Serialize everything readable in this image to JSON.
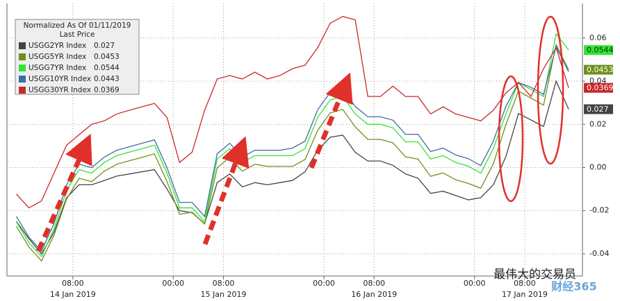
{
  "chart_data": {
    "type": "line",
    "legend_title": "Normalized As Of 01/11/2019",
    "legend_subtitle": "Last Price",
    "x": [
      -1,
      1,
      3,
      5,
      7,
      9,
      11,
      13,
      15,
      17,
      19,
      21,
      23,
      25,
      27,
      29,
      31,
      33,
      35,
      37,
      39,
      41,
      43,
      45,
      47,
      49,
      51,
      53,
      55,
      57,
      59,
      61,
      63,
      65,
      67,
      69,
      71,
      73,
      75,
      77,
      79,
      81,
      83,
      85,
      87
    ],
    "xlim": [
      -2.5,
      89.2
    ],
    "xticks": [
      {
        "value": 8,
        "label": "08:00"
      },
      {
        "value": 24,
        "label": "00:00"
      },
      {
        "value": 32,
        "label": "08:00"
      },
      {
        "value": 48,
        "label": "00:00"
      },
      {
        "value": 56,
        "label": "08:00"
      },
      {
        "value": 72,
        "label": "00:00"
      },
      {
        "value": 80,
        "label": "08:00"
      }
    ],
    "date_labels": [
      {
        "value": 8,
        "label": "14 Jan 2019"
      },
      {
        "value": 32,
        "label": "15 Jan 2019"
      },
      {
        "value": 56,
        "label": "16 Jan 2019"
      },
      {
        "value": 80,
        "label": "17 Jan 2019"
      }
    ],
    "ylim": [
      -0.0503,
      0.076
    ],
    "yticks": [
      0.06,
      0.04,
      0.02,
      {
        "value": 0,
        "label": "0.00"
      },
      -0.02,
      -0.04
    ],
    "grid": true,
    "series": [
      {
        "name": "USGG2YR Index",
        "last": 0.027,
        "color": "#444444",
        "tag_text": "#ffffff",
        "values": [
          -0.025,
          -0.033,
          -0.04,
          -0.03,
          -0.014,
          -0.008,
          -0.008,
          -0.006,
          -0.004,
          -0.003,
          -0.002,
          -0.001,
          -0.01,
          -0.02,
          -0.021,
          -0.026,
          -0.007,
          -0.003,
          -0.009,
          -0.007,
          -0.008,
          -0.007,
          -0.006,
          -0.002,
          0.008,
          0.014,
          0.015,
          0.007,
          0.003,
          0.003,
          0.001,
          -0.003,
          -0.005,
          -0.012,
          -0.011,
          -0.013,
          -0.015,
          -0.014,
          -0.008,
          0.005,
          0.025,
          0.022,
          0.019,
          0.04,
          0.027
        ]
      },
      {
        "name": "USGG5YR Index",
        "last": 0.0453,
        "color": "#6f8f1c",
        "tag_text": "#ffffff",
        "values": [
          -0.0272,
          -0.0368,
          -0.0433,
          -0.0314,
          -0.0146,
          -0.005,
          -0.0066,
          -0.0017,
          0.0015,
          0.0031,
          0.0047,
          0.0063,
          -0.0066,
          -0.0217,
          -0.0207,
          -0.0262,
          -0.0001,
          0.0047,
          -0.0017,
          0.0015,
          0.0005,
          0.0005,
          0.0005,
          0.0037,
          0.0172,
          0.0253,
          0.0269,
          0.0188,
          0.013,
          0.013,
          0.0114,
          0.0049,
          0.0039,
          -0.0041,
          -0.0025,
          -0.0057,
          -0.0074,
          -0.0096,
          0.0017,
          0.0198,
          0.0354,
          0.0321,
          0.0289,
          0.0569,
          0.0453
        ]
      },
      {
        "name": "USGG7YR Index",
        "last": 0.0544,
        "color": "#35e235",
        "tag_text": "#003300",
        "values": [
          -0.0252,
          -0.0348,
          -0.0413,
          -0.0284,
          -0.0106,
          -0.001,
          -0.0026,
          0.0023,
          0.0055,
          0.0071,
          0.0087,
          0.0103,
          -0.0026,
          -0.0187,
          -0.0187,
          -0.0252,
          0.0039,
          0.0087,
          0.0023,
          0.0055,
          0.0055,
          0.0055,
          0.0055,
          0.0087,
          0.0232,
          0.0313,
          0.0329,
          0.0248,
          0.02,
          0.02,
          0.0184,
          0.0119,
          0.0119,
          0.0039,
          0.0055,
          0.0023,
          0.0006,
          -0.0026,
          0.0087,
          0.0248,
          0.0394,
          0.0361,
          0.0329,
          0.0619,
          0.0544
        ]
      },
      {
        "name": "USGG10YR Index",
        "last": 0.0443,
        "color": "#3b6ea5",
        "tag_text": "#ffffff",
        "values": [
          -0.0227,
          -0.0323,
          -0.0388,
          -0.0259,
          -0.0081,
          0.0015,
          -0.0001,
          0.0048,
          0.008,
          0.0096,
          0.0112,
          0.0128,
          -0.0001,
          -0.0162,
          -0.0162,
          -0.0227,
          0.0064,
          0.0112,
          0.0048,
          0.008,
          0.008,
          0.008,
          0.009,
          0.0122,
          0.0267,
          0.0348,
          0.0364,
          0.0283,
          0.0235,
          0.0235,
          0.0219,
          0.0154,
          0.0154,
          0.0074,
          0.009,
          0.0058,
          0.0041,
          0.0009,
          0.0122,
          0.0283,
          0.0394,
          0.0371,
          0.0339,
          0.056,
          0.0443
        ]
      },
      {
        "name": "USGG30YR Index",
        "last": 0.0369,
        "color": "#c8282a",
        "tag_text": "#ffffff",
        "values": [
          -0.0123,
          -0.0187,
          -0.0155,
          -0.0026,
          0.0103,
          0.0152,
          0.02,
          0.0216,
          0.0248,
          0.0265,
          0.0281,
          0.0297,
          0.0232,
          0.0023,
          0.0071,
          0.0265,
          0.041,
          0.0426,
          0.041,
          0.0442,
          0.041,
          0.0426,
          0.0458,
          0.0474,
          0.0555,
          0.0668,
          0.07,
          0.0684,
          0.0329,
          0.0329,
          0.0377,
          0.0329,
          0.0329,
          0.0248,
          0.0281,
          0.0248,
          0.0232,
          0.0216,
          0.0265,
          0.0345,
          0.0394,
          0.0329,
          0.0458,
          0.0555,
          0.0369
        ]
      }
    ],
    "tagged_series": [
      2,
      1,
      4,
      0
    ],
    "watermark": "最伟大的交易员",
    "logo": "财经365"
  }
}
